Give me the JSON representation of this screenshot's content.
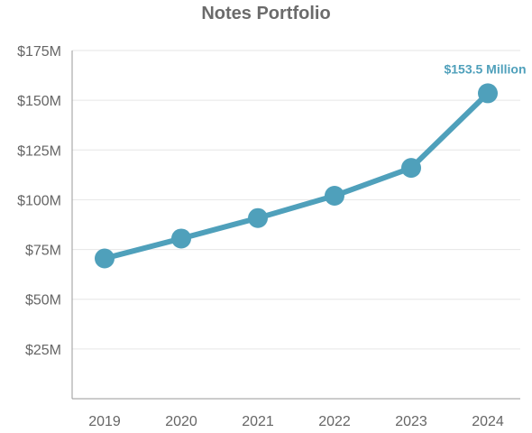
{
  "chart_data": {
    "type": "line",
    "title": "Notes Portfolio",
    "xlabel": "",
    "ylabel": "",
    "categories": [
      "2019",
      "2020",
      "2021",
      "2022",
      "2023",
      "2024"
    ],
    "values": [
      70.5,
      80.5,
      90.8,
      102.0,
      116.0,
      153.5
    ],
    "ylim": [
      0,
      175
    ],
    "y_ticks": [
      25,
      50,
      75,
      100,
      125,
      150,
      175
    ],
    "y_tick_labels": [
      "$25M",
      "$50M",
      "$75M",
      "$100M",
      "$125M",
      "$150M",
      "$175M"
    ],
    "grid": true,
    "annotation": {
      "category": "2024",
      "text": "$153.5 Million"
    },
    "colors": {
      "line": "#4fa0bb",
      "annotation": "#4fa0bb",
      "grid": "#e6e6e6",
      "axis": "#9a9a9a"
    }
  }
}
